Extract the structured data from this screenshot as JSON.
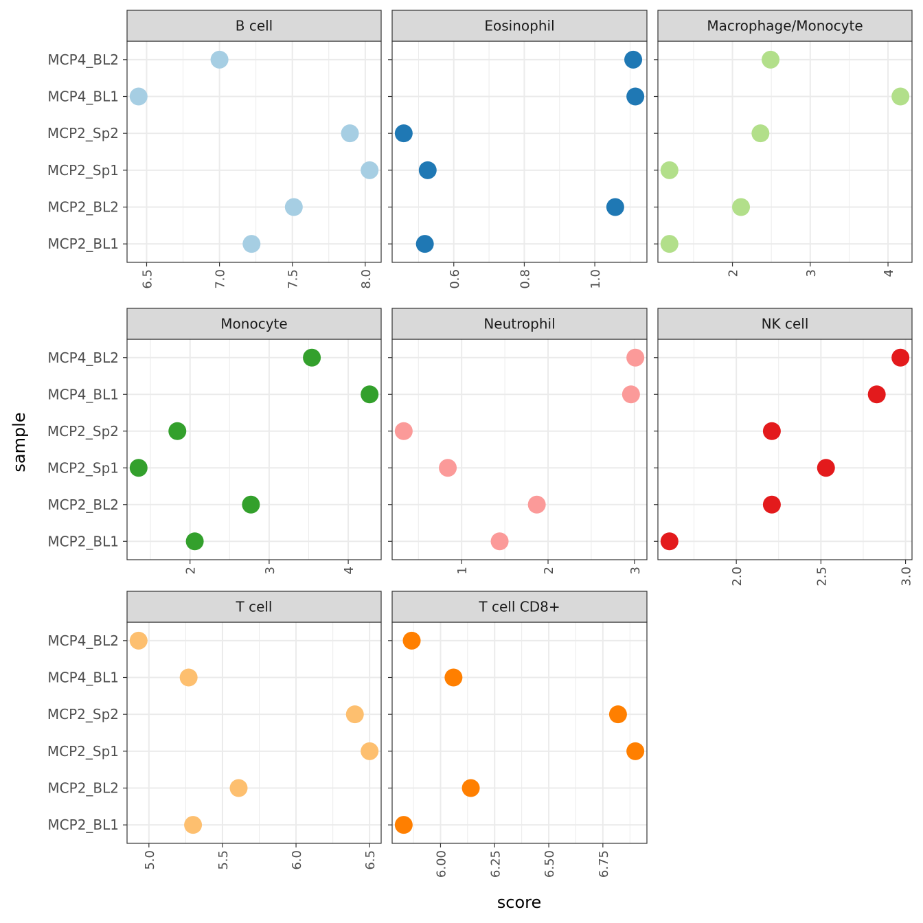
{
  "chart_data": {
    "type": "scatter",
    "xlabel": "score",
    "ylabel": "sample",
    "grid": true,
    "legend": "none",
    "categories": [
      "MCP2_BL1",
      "MCP2_BL2",
      "MCP2_Sp1",
      "MCP2_Sp2",
      "MCP4_BL1",
      "MCP4_BL2"
    ],
    "panels": [
      {
        "title": "B cell",
        "color": "#A6CEE3",
        "ticks": [
          6.5,
          7.0,
          7.5,
          8.0
        ],
        "tick_labels": [
          "6.5",
          "7.0",
          "7.5",
          "8.0"
        ],
        "values": [
          7.22,
          7.51,
          8.03,
          7.895,
          6.445,
          7.0
        ]
      },
      {
        "title": "Eosinophil",
        "color": "#1F78B4",
        "ticks": [
          0.6,
          0.8,
          1.0
        ],
        "tick_labels": [
          "0.6",
          "0.8",
          "1.0"
        ],
        "values": [
          0.518,
          1.058,
          0.526,
          0.458,
          1.115,
          1.109
        ]
      },
      {
        "title": "Macrophage/Monocyte",
        "color": "#B2DF8A",
        "ticks": [
          2,
          3,
          4
        ],
        "tick_labels": [
          "2",
          "3",
          "4"
        ],
        "values": [
          1.19,
          2.11,
          1.19,
          2.36,
          4.16,
          2.49
        ]
      },
      {
        "title": "Monocyte",
        "color": "#33A02C",
        "ticks": [
          2,
          3,
          4
        ],
        "tick_labels": [
          "2",
          "3",
          "4"
        ],
        "values": [
          2.06,
          2.77,
          1.35,
          1.84,
          4.27,
          3.54
        ]
      },
      {
        "title": "Neutrophil",
        "color": "#FB9A99",
        "ticks": [
          1,
          2,
          3
        ],
        "tick_labels": [
          "1",
          "2",
          "3"
        ],
        "values": [
          1.44,
          1.87,
          0.84,
          0.33,
          2.96,
          3.01
        ]
      },
      {
        "title": "NK cell",
        "color": "#E31A1C",
        "ticks": [
          2.0,
          2.5,
          3.0
        ],
        "tick_labels": [
          "2.0",
          "2.5",
          "3.0"
        ],
        "values": [
          1.605,
          2.21,
          2.53,
          2.21,
          2.83,
          2.97
        ]
      },
      {
        "title": "T cell",
        "color": "#FDBF6F",
        "ticks": [
          5.0,
          5.5,
          6.0,
          6.5
        ],
        "tick_labels": [
          "5.0",
          "5.5",
          "6.0",
          "6.5"
        ],
        "values": [
          5.3,
          5.61,
          6.5,
          6.4,
          5.27,
          4.93
        ]
      },
      {
        "title": "T cell CD8+",
        "color": "#FF7F00",
        "ticks": [
          6.0,
          6.25,
          6.5,
          6.75
        ],
        "tick_labels": [
          "6.00",
          "6.25",
          "6.50",
          "6.75"
        ],
        "values": [
          5.83,
          6.14,
          6.9,
          6.82,
          6.06,
          5.867
        ]
      }
    ]
  }
}
